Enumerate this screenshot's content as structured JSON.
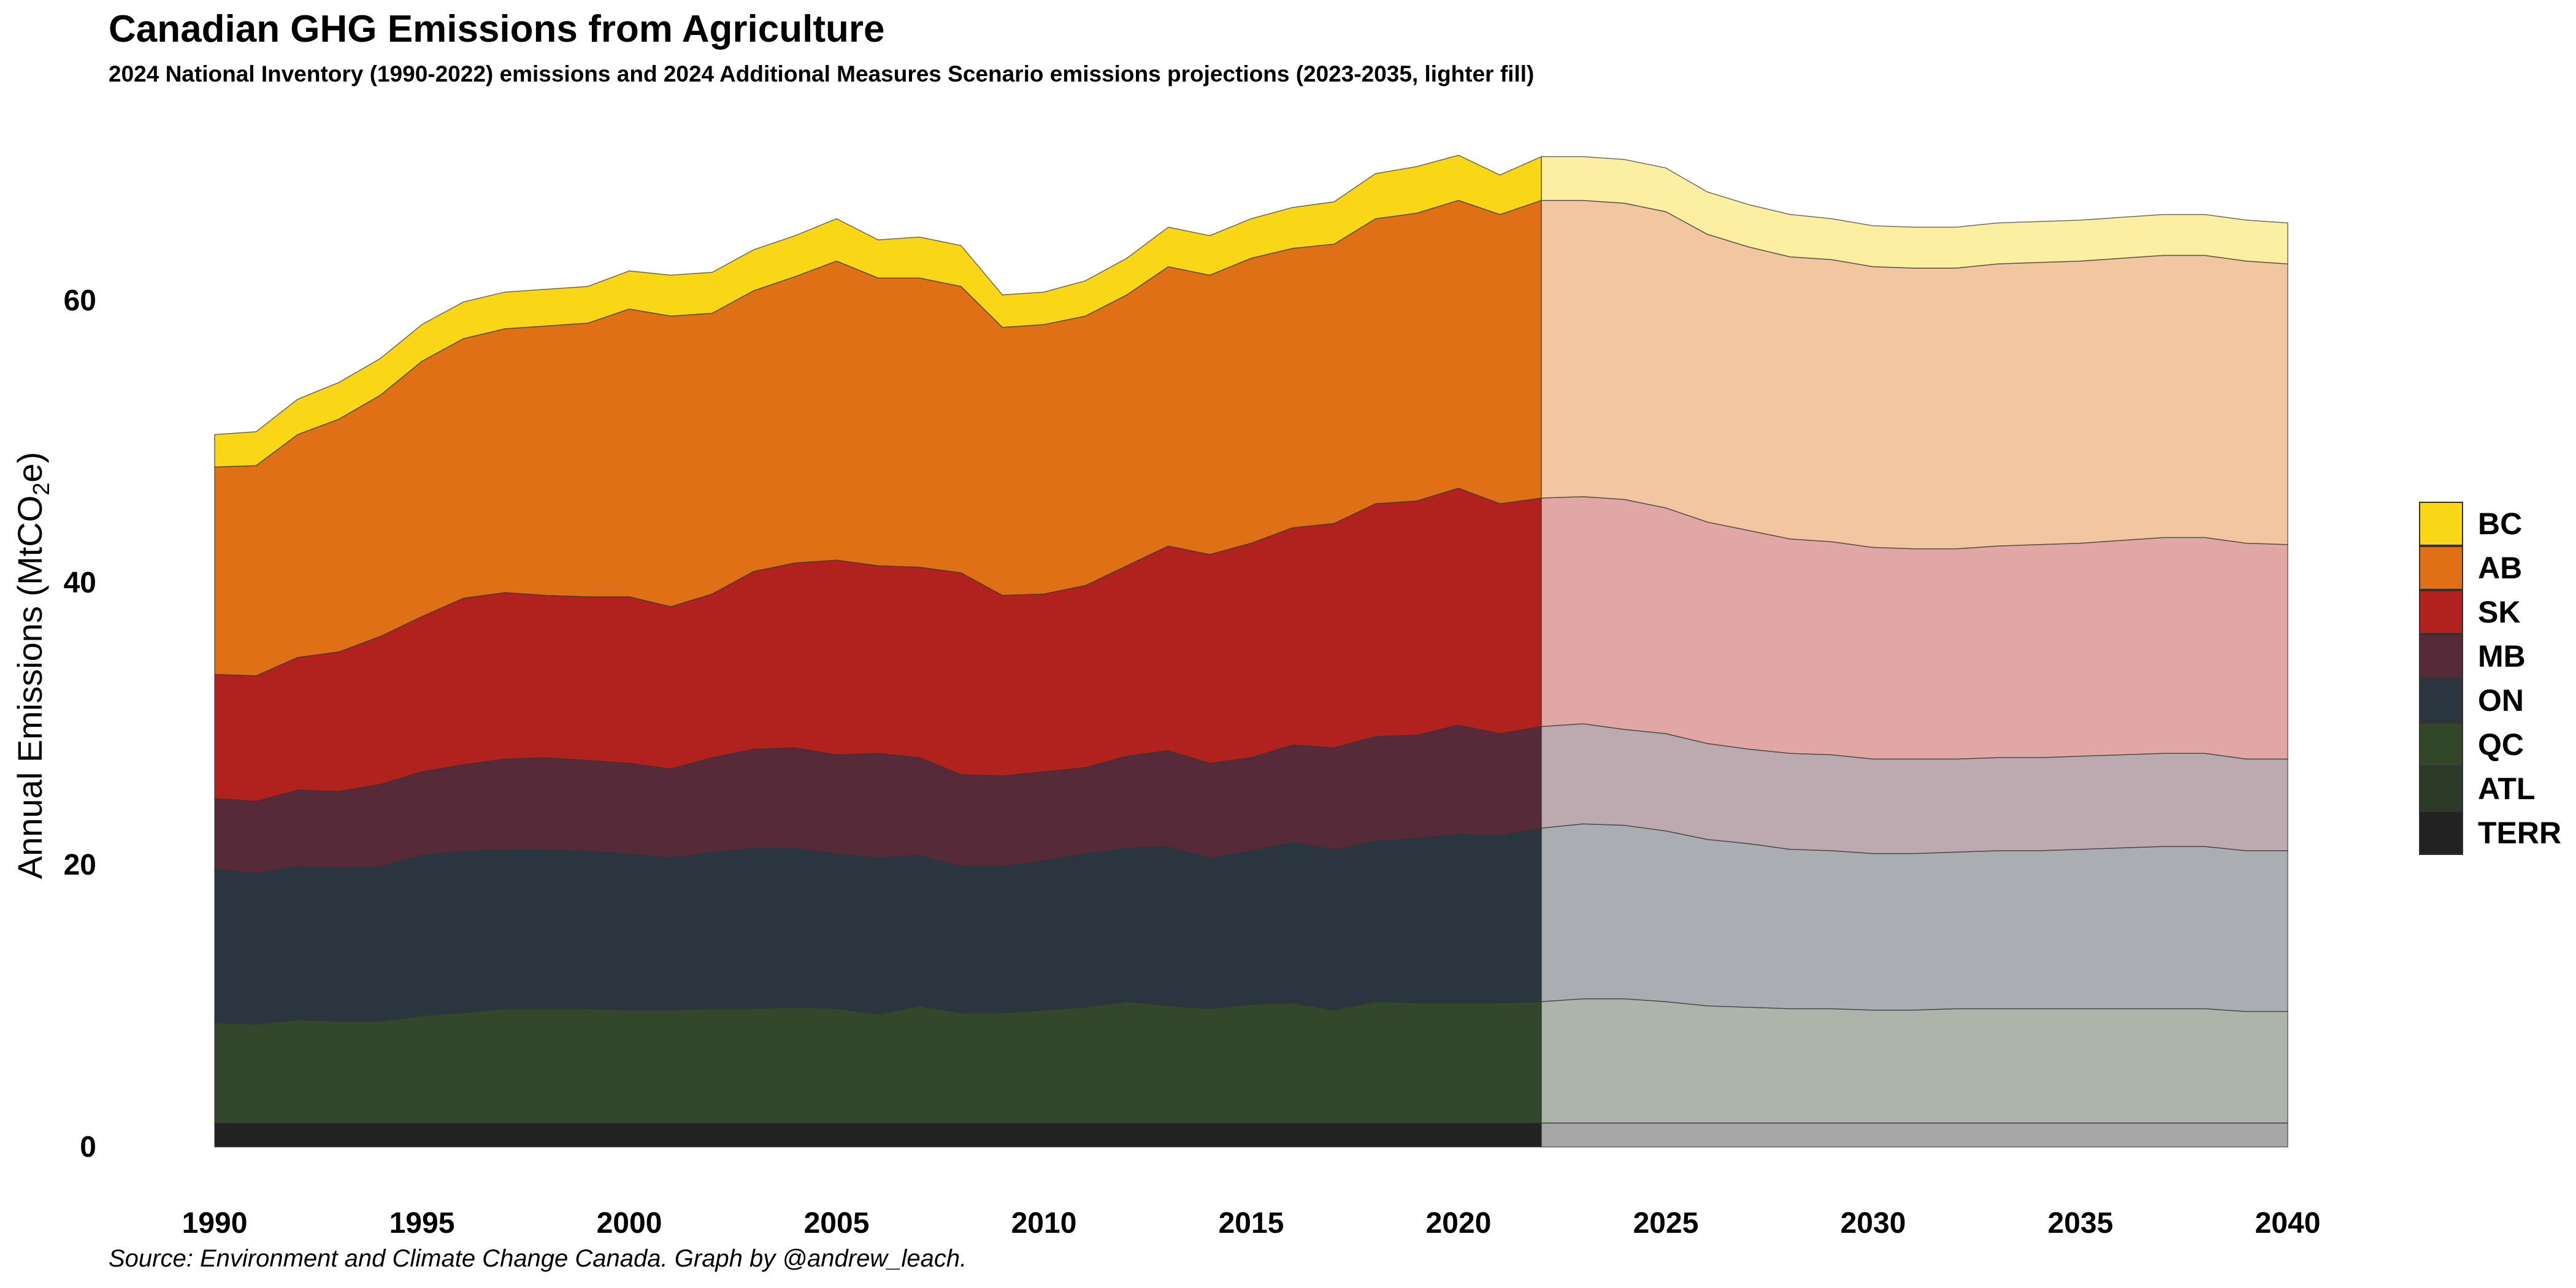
{
  "title": "Canadian GHG Emissions from Agriculture",
  "subtitle": "2024 National Inventory (1990-2022) emissions and 2024 Additional Measures Scenario emissions projections (2023-2035, lighter fill)",
  "caption": "Source: Environment and Climate Change Canada. Graph by @andrew_leach.",
  "chart_data": {
    "type": "area",
    "stacked": true,
    "title": "Canadian GHG Emissions from Agriculture",
    "ylabel": "Annual Emissions  (MtCO2e)",
    "xlabel": "",
    "x_ticks": [
      1990,
      1995,
      2000,
      2005,
      2010,
      2015,
      2020,
      2025,
      2030,
      2035,
      2040
    ],
    "y_ticks": [
      0,
      20,
      40,
      60
    ],
    "xlim": [
      1990,
      2040
    ],
    "ylim": [
      0,
      72
    ],
    "projection_start": 2022,
    "grid": false,
    "legend_position": "right",
    "x": [
      1990,
      1991,
      1992,
      1993,
      1994,
      1995,
      1996,
      1997,
      1998,
      1999,
      2000,
      2001,
      2002,
      2003,
      2004,
      2005,
      2006,
      2007,
      2008,
      2009,
      2010,
      2011,
      2012,
      2013,
      2014,
      2015,
      2016,
      2017,
      2018,
      2019,
      2020,
      2021,
      2022,
      2023,
      2024,
      2025,
      2026,
      2027,
      2028,
      2029,
      2030,
      2031,
      2032,
      2033,
      2034,
      2035,
      2036,
      2037,
      2038,
      2039,
      2040
    ],
    "series": [
      {
        "name": "TERR",
        "color": "#222222",
        "values": [
          1.7,
          1.7,
          1.7,
          1.7,
          1.7,
          1.7,
          1.7,
          1.7,
          1.7,
          1.7,
          1.7,
          1.7,
          1.7,
          1.7,
          1.7,
          1.7,
          1.7,
          1.7,
          1.7,
          1.7,
          1.7,
          1.7,
          1.7,
          1.7,
          1.7,
          1.7,
          1.7,
          1.7,
          1.7,
          1.7,
          1.7,
          1.7,
          1.7,
          1.7,
          1.7,
          1.7,
          1.7,
          1.7,
          1.7,
          1.7,
          1.7,
          1.7,
          1.7,
          1.7,
          1.7,
          1.7,
          1.7,
          1.7,
          1.7,
          1.7,
          1.7
        ]
      },
      {
        "name": "ATL",
        "color": "#2B3A26",
        "values": [
          0.0,
          0.0,
          0.0,
          0.0,
          0.0,
          0.0,
          0.0,
          0.0,
          0.0,
          0.0,
          0.0,
          0.0,
          0.0,
          0.0,
          0.0,
          0.0,
          0.0,
          0.0,
          0.0,
          0.0,
          0.0,
          0.0,
          0.0,
          0.0,
          0.0,
          0.0,
          0.0,
          0.0,
          0.0,
          0.0,
          0.0,
          0.0,
          0.0,
          0.0,
          0.0,
          0.0,
          0.0,
          0.0,
          0.0,
          0.0,
          0.0,
          0.0,
          0.0,
          0.0,
          0.0,
          0.0,
          0.0,
          0.0,
          0.0,
          0.0,
          0.0
        ]
      },
      {
        "name": "QC",
        "color": "#33472A",
        "values": [
          7.1,
          7.0,
          7.3,
          7.2,
          7.2,
          7.6,
          7.8,
          8.1,
          8.1,
          8.1,
          8.0,
          8.0,
          8.1,
          8.1,
          8.2,
          8.1,
          7.7,
          8.3,
          7.8,
          7.8,
          8.0,
          8.2,
          8.6,
          8.3,
          8.1,
          8.4,
          8.5,
          8.0,
          8.6,
          8.5,
          8.5,
          8.5,
          8.6,
          8.8,
          8.8,
          8.6,
          8.3,
          8.2,
          8.1,
          8.1,
          8.0,
          8.0,
          8.1,
          8.1,
          8.1,
          8.1,
          8.1,
          8.1,
          8.1,
          7.9,
          7.9
        ]
      },
      {
        "name": "ON",
        "color": "#2A3540",
        "values": [
          10.9,
          10.7,
          10.9,
          10.9,
          11.0,
          11.4,
          11.5,
          11.3,
          11.3,
          11.2,
          11.1,
          10.8,
          11.1,
          11.4,
          11.3,
          11.0,
          11.1,
          10.7,
          10.4,
          10.4,
          10.6,
          10.9,
          10.9,
          11.3,
          10.7,
          10.9,
          11.4,
          11.4,
          11.4,
          11.7,
          12.0,
          11.9,
          12.3,
          12.4,
          12.3,
          12.1,
          11.8,
          11.6,
          11.3,
          11.2,
          11.1,
          11.1,
          11.1,
          11.2,
          11.2,
          11.3,
          11.4,
          11.5,
          11.5,
          11.4,
          11.4
        ]
      },
      {
        "name": "MB",
        "color": "#572A39",
        "values": [
          5.0,
          5.1,
          5.4,
          5.4,
          5.8,
          5.9,
          6.1,
          6.4,
          6.5,
          6.4,
          6.4,
          6.3,
          6.7,
          7.0,
          7.1,
          7.0,
          7.4,
          6.9,
          6.5,
          6.4,
          6.3,
          6.1,
          6.5,
          6.8,
          6.7,
          6.6,
          6.9,
          7.2,
          7.4,
          7.3,
          7.7,
          7.2,
          7.2,
          7.1,
          6.8,
          6.9,
          6.8,
          6.7,
          6.8,
          6.8,
          6.7,
          6.7,
          6.6,
          6.6,
          6.6,
          6.6,
          6.6,
          6.6,
          6.6,
          6.5,
          6.5
        ]
      },
      {
        "name": "SK",
        "color": "#B1221E",
        "values": [
          8.8,
          8.9,
          9.4,
          9.9,
          10.5,
          11.0,
          11.8,
          11.8,
          11.5,
          11.6,
          11.8,
          11.5,
          11.6,
          12.6,
          13.1,
          13.8,
          13.3,
          13.5,
          14.3,
          12.8,
          12.6,
          12.9,
          13.5,
          14.5,
          14.8,
          15.2,
          15.4,
          15.9,
          16.5,
          16.6,
          16.8,
          16.3,
          16.2,
          16.1,
          16.3,
          16.0,
          15.7,
          15.5,
          15.2,
          15.1,
          15.0,
          14.9,
          14.9,
          15.0,
          15.1,
          15.1,
          15.2,
          15.3,
          15.3,
          15.3,
          15.2
        ]
      },
      {
        "name": "AB",
        "color": "#E07016",
        "values": [
          14.7,
          14.9,
          15.8,
          16.5,
          17.1,
          18.1,
          18.4,
          18.7,
          19.1,
          19.4,
          20.4,
          20.6,
          19.9,
          19.9,
          20.3,
          21.2,
          20.4,
          20.5,
          20.3,
          19.0,
          19.1,
          19.1,
          19.2,
          19.8,
          19.8,
          20.2,
          19.8,
          19.8,
          20.2,
          20.4,
          20.4,
          20.5,
          21.1,
          21.0,
          21.0,
          21.0,
          20.4,
          20.1,
          20.0,
          20.0,
          19.9,
          19.9,
          19.9,
          20.0,
          20.0,
          20.0,
          20.0,
          20.0,
          20.0,
          20.0,
          19.9
        ]
      },
      {
        "name": "BC",
        "color": "#F9D616",
        "values": [
          2.3,
          2.4,
          2.5,
          2.6,
          2.6,
          2.6,
          2.6,
          2.6,
          2.6,
          2.6,
          2.7,
          2.9,
          2.9,
          2.9,
          2.9,
          3.0,
          2.7,
          2.9,
          2.9,
          2.3,
          2.3,
          2.5,
          2.6,
          2.8,
          2.8,
          2.8,
          2.9,
          3.0,
          3.2,
          3.3,
          3.2,
          2.8,
          3.1,
          3.1,
          3.1,
          3.1,
          3.0,
          3.0,
          3.0,
          2.9,
          2.9,
          2.9,
          2.9,
          2.9,
          2.9,
          2.9,
          2.9,
          2.9,
          2.9,
          2.9,
          2.9
        ]
      }
    ]
  }
}
